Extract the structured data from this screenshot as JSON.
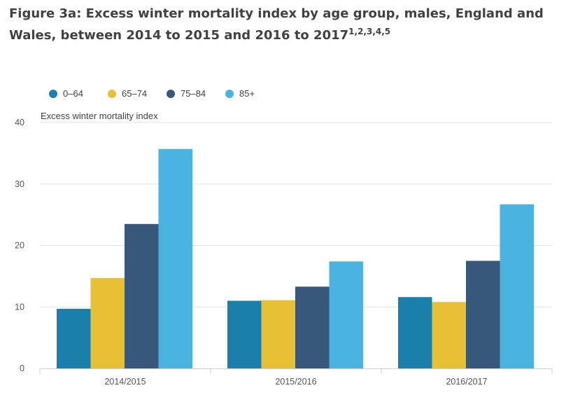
{
  "title": {
    "text": "Figure 3a: Excess winter mortality index by age group, males, England and Wales, between 2014 to 2015 and 2016 to 2017",
    "superscript": "1,2,3,4,5"
  },
  "chart_data": {
    "type": "bar",
    "title": "Figure 3a: Excess winter mortality index by age group, males, England and Wales, between 2014 to 2015 and 2016 to 2017",
    "ylabel": "Excess winter mortality index",
    "xlabel": "",
    "categories": [
      "2014/2015",
      "2015/2016",
      "2016/2017"
    ],
    "ylim": [
      0,
      40
    ],
    "yticks": [
      "0",
      "10",
      "20",
      "30",
      "40"
    ],
    "grid": true,
    "legend_position": "top-left",
    "series": [
      {
        "name": "0–64",
        "color": "#1b7fac",
        "values": [
          9.7,
          11.0,
          11.6
        ]
      },
      {
        "name": "65–74",
        "color": "#e8c036",
        "values": [
          14.7,
          11.1,
          10.8
        ]
      },
      {
        "name": "75–84",
        "color": "#37587a",
        "values": [
          23.5,
          13.3,
          17.5
        ]
      },
      {
        "name": "85+",
        "color": "#4ab3df",
        "values": [
          35.7,
          17.4,
          26.7
        ]
      }
    ]
  }
}
